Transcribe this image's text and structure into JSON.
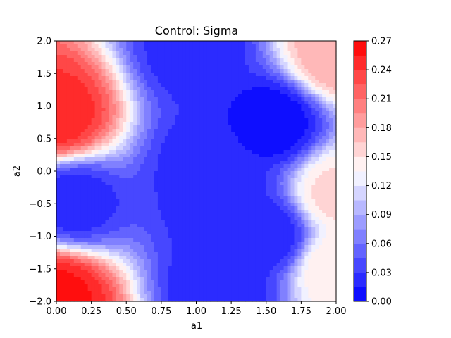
{
  "chart_data": {
    "type": "heatmap",
    "subtype": "filled-contour",
    "title": "Control: Sigma",
    "xlabel": "a1",
    "ylabel": "a2",
    "xlim": [
      0.0,
      2.0
    ],
    "ylim": [
      -2.0,
      2.0
    ],
    "x_ticks": [
      "0.00",
      "0.25",
      "0.50",
      "0.75",
      "1.00",
      "1.25",
      "1.50",
      "1.75",
      "2.00"
    ],
    "y_ticks": [
      "-2.0",
      "-1.5",
      "-1.0",
      "-0.5",
      "0.0",
      "0.5",
      "1.0",
      "1.5",
      "2.0"
    ],
    "colormap": "bwr",
    "colorbar": {
      "range": [
        0.0,
        0.27
      ],
      "levels": 18,
      "ticks": [
        "0.00",
        "0.03",
        "0.06",
        "0.09",
        "0.12",
        "0.15",
        "0.18",
        "0.21",
        "0.24",
        "0.27"
      ]
    },
    "features": [
      {
        "a1": 0.0,
        "a2": 0.85,
        "value": 0.25
      },
      {
        "a1": 0.0,
        "a2": -1.9,
        "value": 0.26
      },
      {
        "a1": 0.12,
        "a2": -0.47,
        "value": 0.02
      },
      {
        "a1": 1.0,
        "a2": 1.85,
        "value": 0.02
      },
      {
        "a1": 1.55,
        "a2": 0.75,
        "value": 0.005
      },
      {
        "a1": 1.1,
        "a2": 0.1,
        "value": 0.02
      },
      {
        "a1": 1.2,
        "a2": -0.5,
        "value": 0.02
      },
      {
        "a1": 1.52,
        "a2": -0.98,
        "value": 0.02
      },
      {
        "a1": 1.2,
        "a2": -1.8,
        "value": 0.015
      },
      {
        "a1": 2.0,
        "a2": 1.8,
        "value": 0.18
      },
      {
        "a1": 2.0,
        "a2": -0.35,
        "value": 0.155
      },
      {
        "a1": 2.0,
        "a2": -1.5,
        "value": 0.15
      }
    ]
  }
}
